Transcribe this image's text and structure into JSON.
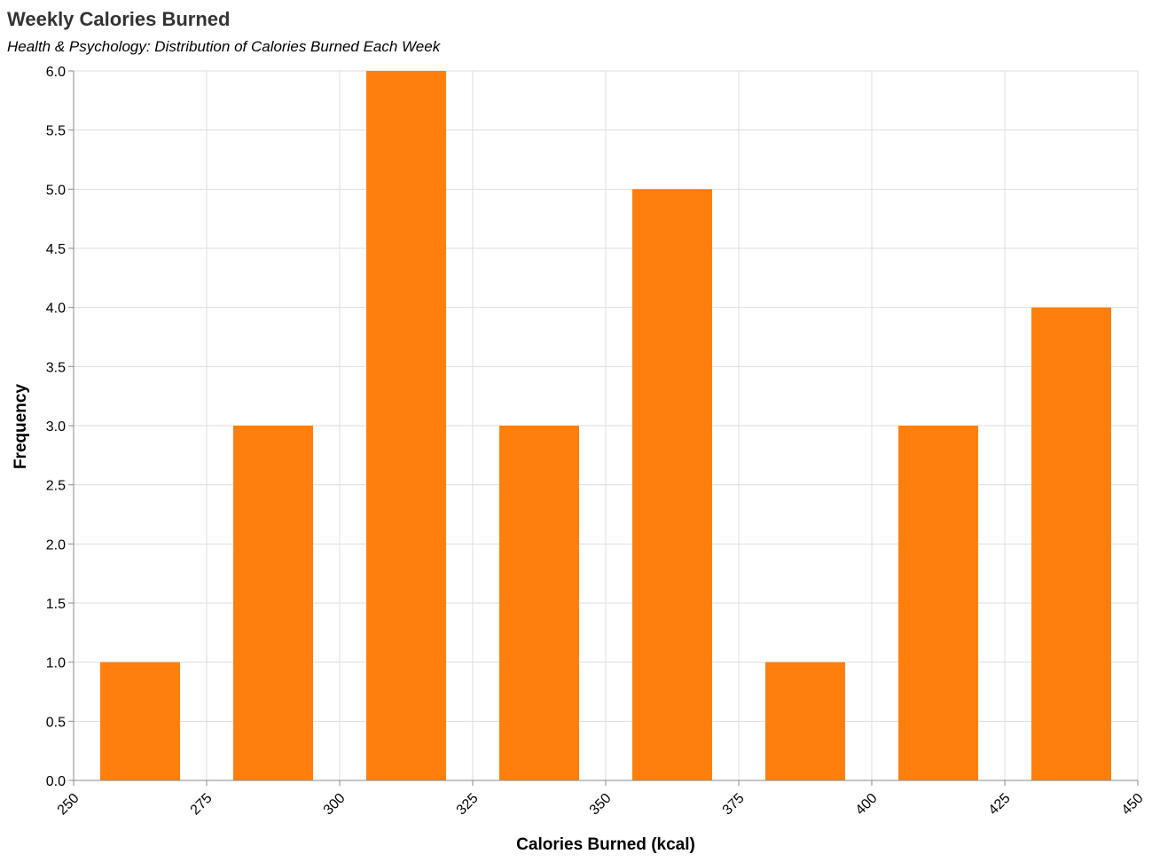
{
  "chart_data": {
    "type": "bar",
    "title": "Weekly Calories Burned",
    "subtitle": "Health & Psychology: Distribution of Calories Burned Each Week",
    "xlabel": "Calories Burned (kcal)",
    "ylabel": "Frequency",
    "xlim": [
      250,
      450
    ],
    "ylim": [
      0,
      6
    ],
    "x_ticks": [
      "250",
      "275",
      "300",
      "325",
      "350",
      "375",
      "400",
      "425",
      "450"
    ],
    "y_ticks": [
      "0.0",
      "0.5",
      "1.0",
      "1.5",
      "2.0",
      "2.5",
      "3.0",
      "3.5",
      "4.0",
      "4.5",
      "5.0",
      "5.5",
      "6.0"
    ],
    "grid": true,
    "bars": [
      {
        "x_start": 255,
        "x_end": 270,
        "value": 1
      },
      {
        "x_start": 280,
        "x_end": 295,
        "value": 3
      },
      {
        "x_start": 305,
        "x_end": 320,
        "value": 6
      },
      {
        "x_start": 330,
        "x_end": 345,
        "value": 3
      },
      {
        "x_start": 355,
        "x_end": 370,
        "value": 5
      },
      {
        "x_start": 380,
        "x_end": 395,
        "value": 1
      },
      {
        "x_start": 405,
        "x_end": 420,
        "value": 3
      },
      {
        "x_start": 430,
        "x_end": 445,
        "value": 4
      }
    ],
    "colors": {
      "bar": "#ff7f0e",
      "grid": "#dddddd",
      "axis": "#888888"
    }
  }
}
